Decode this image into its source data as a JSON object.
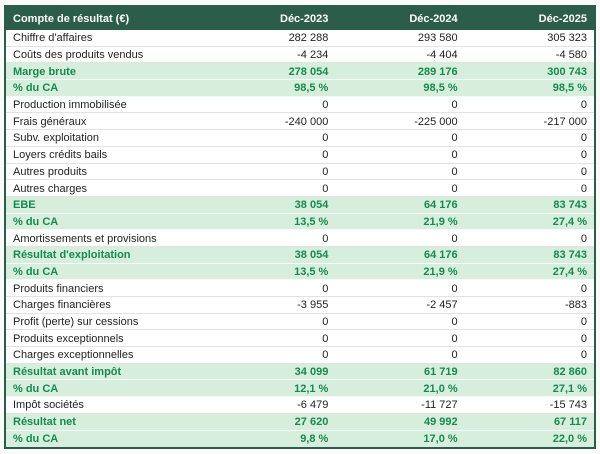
{
  "chart_data": {
    "type": "table",
    "title": "Compte de résultat (€)",
    "columns": [
      "Déc-2023",
      "Déc-2024",
      "Déc-2025"
    ],
    "colors": {
      "header_bg": "#2B5D4A",
      "header_text": "#FFFFFF",
      "highlight_bg": "#D7EEDC",
      "highlight_text": "#168A50",
      "row_text": "#1F1F1F",
      "border": "#2B5D4A"
    },
    "rows": [
      {
        "label": "Chiffre d'affaires",
        "values": [
          "282 288",
          "293 580",
          "305 323"
        ],
        "highlight": false
      },
      {
        "label": "Coûts des produits vendus",
        "values": [
          "-4 234",
          "-4 404",
          "-4 580"
        ],
        "highlight": false
      },
      {
        "label": "Marge brute",
        "values": [
          "278 054",
          "289 176",
          "300 743"
        ],
        "highlight": true
      },
      {
        "label": "% du CA",
        "values": [
          "98,5 %",
          "98,5 %",
          "98,5 %"
        ],
        "highlight": true
      },
      {
        "label": "Production immobilisée",
        "values": [
          "0",
          "0",
          "0"
        ],
        "highlight": false
      },
      {
        "label": "Frais généraux",
        "values": [
          "-240 000",
          "-225 000",
          "-217 000"
        ],
        "highlight": false
      },
      {
        "label": "Subv. exploitation",
        "values": [
          "0",
          "0",
          "0"
        ],
        "highlight": false
      },
      {
        "label": "Loyers crédits bails",
        "values": [
          "0",
          "0",
          "0"
        ],
        "highlight": false
      },
      {
        "label": "Autres produits",
        "values": [
          "0",
          "0",
          "0"
        ],
        "highlight": false
      },
      {
        "label": "Autres charges",
        "values": [
          "0",
          "0",
          "0"
        ],
        "highlight": false
      },
      {
        "label": "EBE",
        "values": [
          "38 054",
          "64 176",
          "83 743"
        ],
        "highlight": true
      },
      {
        "label": "% du CA",
        "values": [
          "13,5 %",
          "21,9 %",
          "27,4 %"
        ],
        "highlight": true
      },
      {
        "label": "Amortissements et provisions",
        "values": [
          "0",
          "0",
          "0"
        ],
        "highlight": false
      },
      {
        "label": "Résultat d'exploitation",
        "values": [
          "38 054",
          "64 176",
          "83 743"
        ],
        "highlight": true
      },
      {
        "label": "% du CA",
        "values": [
          "13,5 %",
          "21,9 %",
          "27,4 %"
        ],
        "highlight": true
      },
      {
        "label": "Produits financiers",
        "values": [
          "0",
          "0",
          "0"
        ],
        "highlight": false
      },
      {
        "label": "Charges financières",
        "values": [
          "-3 955",
          "-2 457",
          "-883"
        ],
        "highlight": false
      },
      {
        "label": "Profit (perte) sur cessions",
        "values": [
          "0",
          "0",
          "0"
        ],
        "highlight": false
      },
      {
        "label": "Produits exceptionnels",
        "values": [
          "0",
          "0",
          "0"
        ],
        "highlight": false
      },
      {
        "label": "Charges exceptionnelles",
        "values": [
          "0",
          "0",
          "0"
        ],
        "highlight": false
      },
      {
        "label": "Résultat avant impôt",
        "values": [
          "34 099",
          "61 719",
          "82 860"
        ],
        "highlight": true
      },
      {
        "label": "% du CA",
        "values": [
          "12,1 %",
          "21,0 %",
          "27,1 %"
        ],
        "highlight": true
      },
      {
        "label": "Impôt sociétés",
        "values": [
          "-6 479",
          "-11 727",
          "-15 743"
        ],
        "highlight": false
      },
      {
        "label": "Résultat net",
        "values": [
          "27 620",
          "49 992",
          "67 117"
        ],
        "highlight": true
      },
      {
        "label": "% du CA",
        "values": [
          "9,8 %",
          "17,0 %",
          "22,0 %"
        ],
        "highlight": true
      }
    ]
  }
}
